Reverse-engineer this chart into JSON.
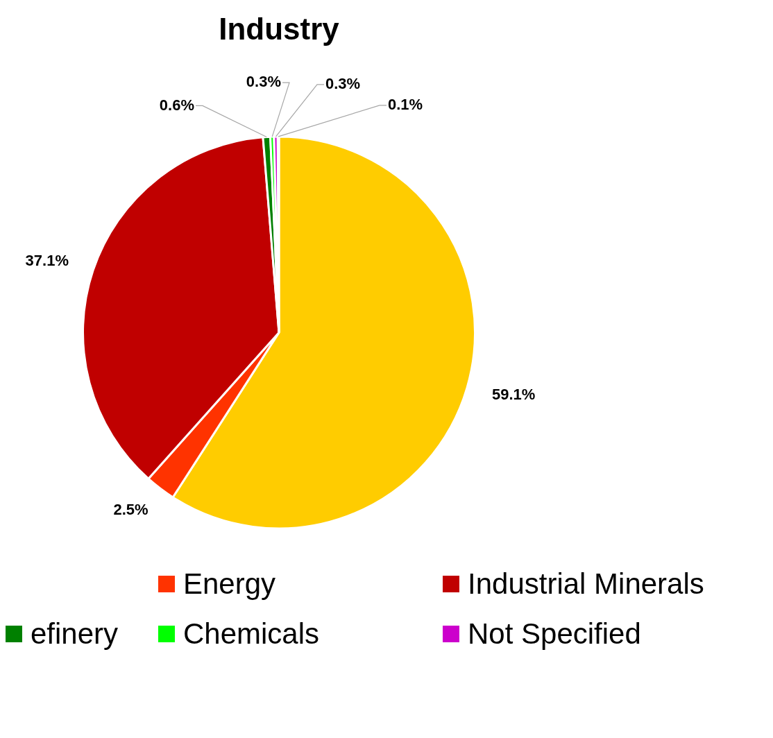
{
  "chart_data": {
    "type": "pie",
    "title": "Industry",
    "categories": [
      null,
      "Energy",
      "Industrial Minerals",
      "efinery",
      "Chemicals",
      "Not Specified",
      null
    ],
    "values": [
      59.1,
      2.5,
      37.1,
      0.6,
      0.3,
      0.3,
      0.1
    ],
    "colors": [
      "#ffcc00",
      "#ff3300",
      "#c00000",
      "#008000",
      "#00ff00",
      "#cc00cc",
      "#ccccff"
    ],
    "value_labels": [
      "59.1%",
      "2.5%",
      "37.1%",
      "0.6%",
      "0.3%",
      "0.3%",
      "0.1%"
    ],
    "legend": "bottom"
  }
}
